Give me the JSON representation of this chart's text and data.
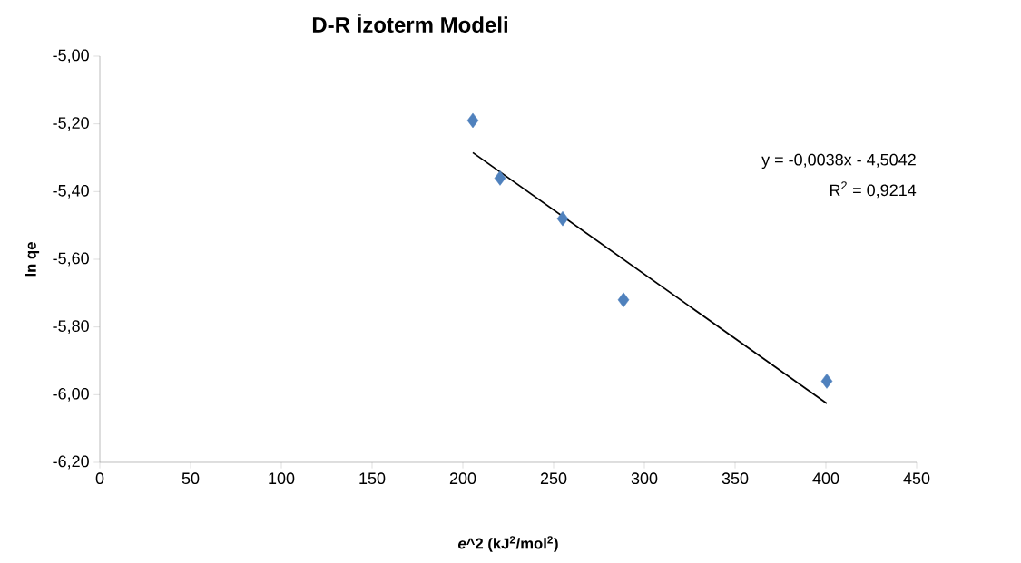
{
  "chart_data": {
    "type": "scatter",
    "title": "D-R İzoterm Modeli",
    "xlabel": "*e*^2 (kJ$^{2}$/mol$^{2}$)",
    "ylabel": "ln qe",
    "series": [
      {
        "color": "#4f81bd",
        "marker": "diamond",
        "x": [
          205.5,
          220.5,
          255,
          288.5,
          400.5
        ],
        "values": [
          -5.19,
          -5.36,
          -5.48,
          -5.72,
          -5.96
        ]
      },
      {
        "type": "line",
        "color": "#000000",
        "marker": "none",
        "line_style": "solid",
        "x": [
          205.5,
          400.5
        ],
        "values": [
          -5.285,
          -6.026
        ]
      }
    ],
    "xlim": [
      0,
      450
    ],
    "xticks": [
      0,
      50,
      100,
      150,
      200,
      250,
      300,
      350,
      400,
      450
    ],
    "ylim": [
      -6.2,
      -5.0
    ],
    "yticks": [
      {
        "value": -6.2,
        "label": "-6,20"
      },
      {
        "value": -6.0,
        "label": "-6,00"
      },
      {
        "value": -5.8,
        "label": "-5,80"
      },
      {
        "value": -5.6,
        "label": "-5,60"
      },
      {
        "value": -5.4,
        "label": "-5,40"
      },
      {
        "value": -5.2,
        "label": "-5,20"
      },
      {
        "value": -5.0,
        "label": "-5,00"
      }
    ],
    "annotations": [
      "y = -0,0038x - 4,5042",
      "R$^{2}$ = 0,9214"
    ]
  }
}
